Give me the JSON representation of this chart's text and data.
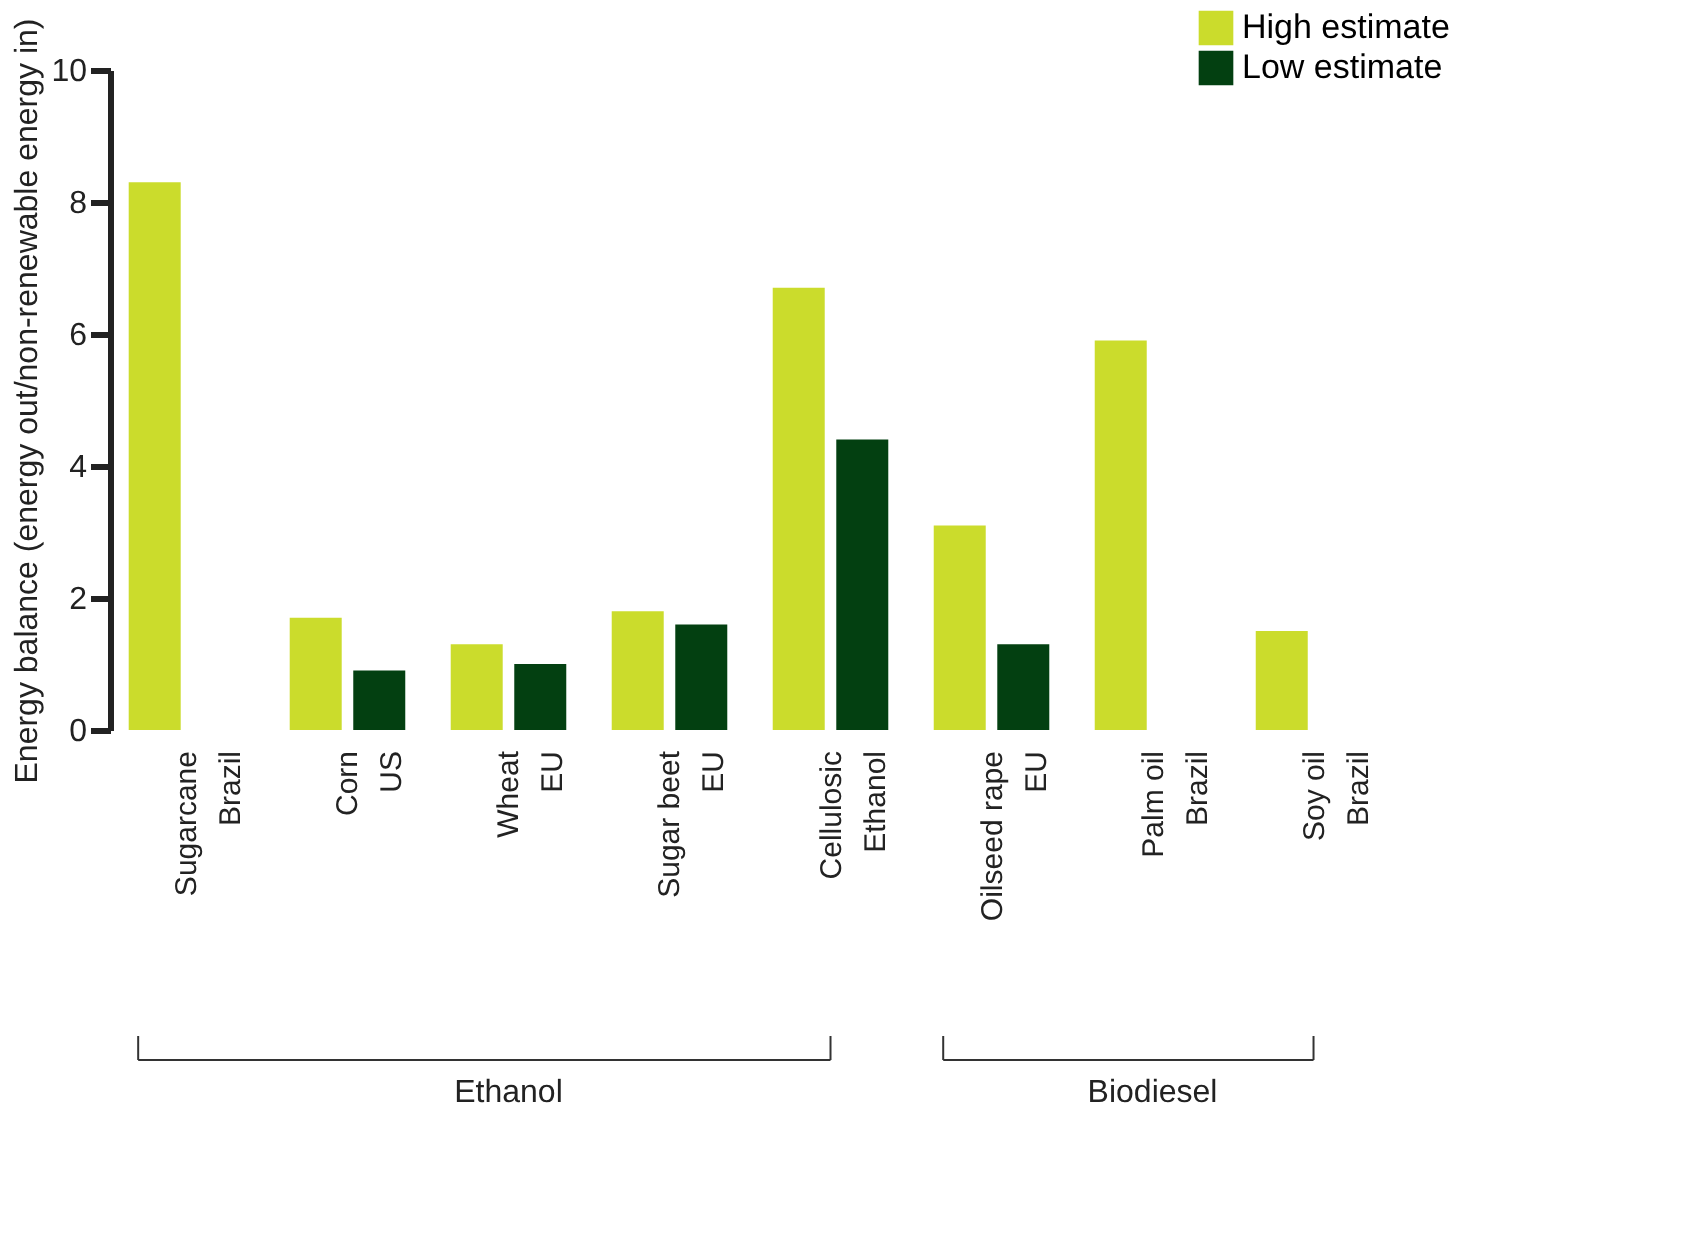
{
  "chart_data": {
    "type": "bar",
    "ylabel": "Energy balance (energy out/non-renewable energy in)",
    "categories": [
      "Sugarcane\nBrazil",
      "Corn\nUS",
      "Wheat\nEU",
      "Sugar beet\nEU",
      "Cellulosic\nEthanol",
      "Oilseed rape\nEU",
      "Palm oil\nBrazil",
      "Soy oil\nBrazil"
    ],
    "series": [
      {
        "name": "High estimate",
        "color": "#cbdc2c",
        "values": [
          8.3,
          1.7,
          1.3,
          1.8,
          6.7,
          3.1,
          5.9,
          1.5
        ]
      },
      {
        "name": "Low estimate",
        "color": "#034011",
        "values": [
          null,
          0.9,
          1.0,
          1.6,
          4.4,
          1.3,
          null,
          null
        ]
      }
    ],
    "ylim": [
      0,
      10
    ],
    "yticks": [
      0,
      2,
      4,
      6,
      8,
      10
    ],
    "grid": false,
    "legend": "top right",
    "annotations": [
      "Ethanol",
      "Biodiesel"
    ]
  }
}
